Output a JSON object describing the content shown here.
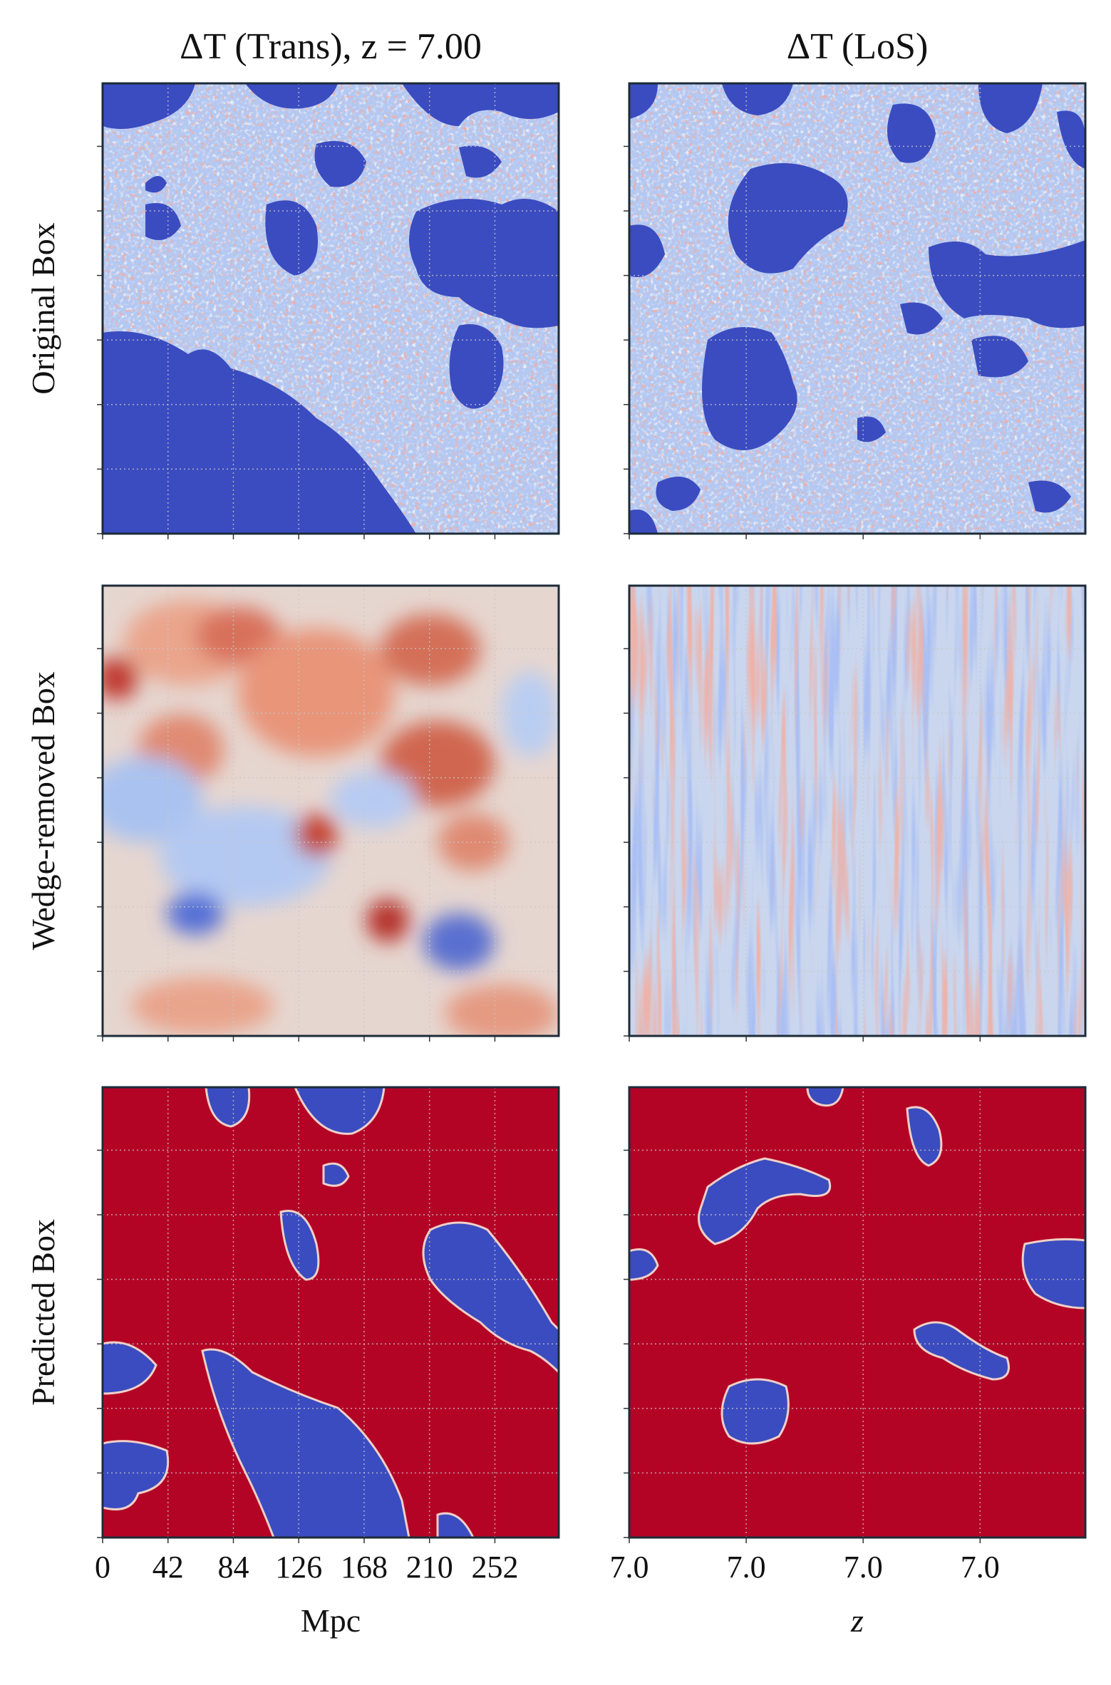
{
  "chart_data": [
    {
      "type": "heatmap",
      "title": "ΔT (Trans), z = 7.00",
      "xlabel": "Mpc",
      "xlim": [
        0,
        293
      ],
      "xticks": [
        0,
        42,
        84,
        126,
        168,
        210,
        252
      ],
      "grid": true
    },
    {
      "type": "heatmap",
      "title": "ΔT (LoS)",
      "xlabel": "z",
      "xlim": [
        7.0,
        7.039
      ],
      "xticks": [
        {
          "value": 7.0,
          "label": "7.0"
        },
        {
          "value": 7.01,
          "label": "7.0"
        },
        {
          "value": 7.02,
          "label": "7.0"
        },
        {
          "value": 7.03,
          "label": "7.0"
        }
      ],
      "grid": true
    }
  ],
  "row_labels": [
    "Original Box",
    "Wedge-removed Box",
    "Predicted Box"
  ]
}
